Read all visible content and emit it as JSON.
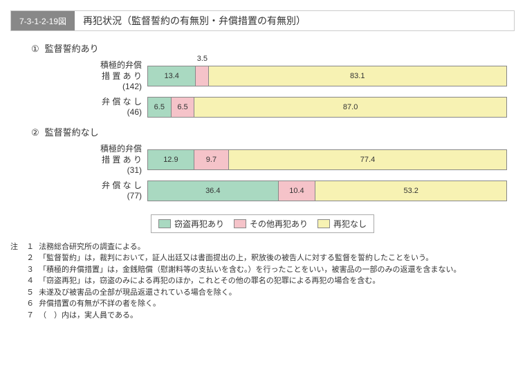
{
  "header": {
    "figNumber": "7-3-1-2-19図",
    "title": "再犯状況（監督誓約の有無別・弁償措置の有無別）"
  },
  "colors": {
    "theft": "#a9d9c1",
    "other": "#f5c3c9",
    "none": "#f7f2b3",
    "border": "#888888"
  },
  "sections": [
    {
      "num": "①",
      "label": "監督誓約あり",
      "rows": [
        {
          "label": "積極的弁償\n措 置 あ り",
          "count": "(142)",
          "segs": [
            {
              "v": 13.4,
              "label": "13.4",
              "inside": true
            },
            {
              "v": 3.5,
              "label": "3.5",
              "inside": false,
              "floatLeftPct": 13.8
            },
            {
              "v": 83.1,
              "label": "83.1",
              "inside": true
            }
          ]
        },
        {
          "label": "弁 償 な し",
          "count": "(46)",
          "segs": [
            {
              "v": 6.5,
              "label": "6.5",
              "inside": true
            },
            {
              "v": 6.5,
              "label": "6.5",
              "inside": true
            },
            {
              "v": 87.0,
              "label": "87.0",
              "inside": true
            }
          ]
        }
      ]
    },
    {
      "num": "②",
      "label": "監督誓約なし",
      "rows": [
        {
          "label": "積極的弁償\n措 置 あ り",
          "count": "(31)",
          "segs": [
            {
              "v": 12.9,
              "label": "12.9",
              "inside": true
            },
            {
              "v": 9.7,
              "label": "9.7",
              "inside": true
            },
            {
              "v": 77.4,
              "label": "77.4",
              "inside": true
            }
          ]
        },
        {
          "label": "弁 償 な し",
          "count": "(77)",
          "segs": [
            {
              "v": 36.4,
              "label": "36.4",
              "inside": true
            },
            {
              "v": 10.4,
              "label": "10.4",
              "inside": true
            },
            {
              "v": 53.2,
              "label": "53.2",
              "inside": true
            }
          ]
        }
      ]
    }
  ],
  "legend": [
    {
      "label": "窃盗再犯あり",
      "colorKey": "theft"
    },
    {
      "label": "その他再犯あり",
      "colorKey": "other"
    },
    {
      "label": "再犯なし",
      "colorKey": "none"
    }
  ],
  "notesLabel": "注",
  "notes": [
    {
      "n": "１",
      "t": "法務総合研究所の調査による。"
    },
    {
      "n": "２",
      "t": "「監督誓約」は，裁判において，証人出廷又は書面提出の上，釈放後の被告人に対する監督を誓約したことをいう。"
    },
    {
      "n": "３",
      "t": "「積極的弁償措置」は，金銭賠償（慰謝料等の支払いを含む。）を行ったことをいい，被害品の一部のみの返還を含まない。"
    },
    {
      "n": "４",
      "t": "「窃盗再犯」は，窃盗のみによる再犯のほか，これとその他の罪名の犯罪による再犯の場合を含む。"
    },
    {
      "n": "５",
      "t": "未遂及び被害品の全部が現品返還されている場合を除く。"
    },
    {
      "n": "６",
      "t": "弁償措置の有無が不詳の者を除く。"
    },
    {
      "n": "７",
      "t": "（　）内は，実人員である。"
    }
  ]
}
